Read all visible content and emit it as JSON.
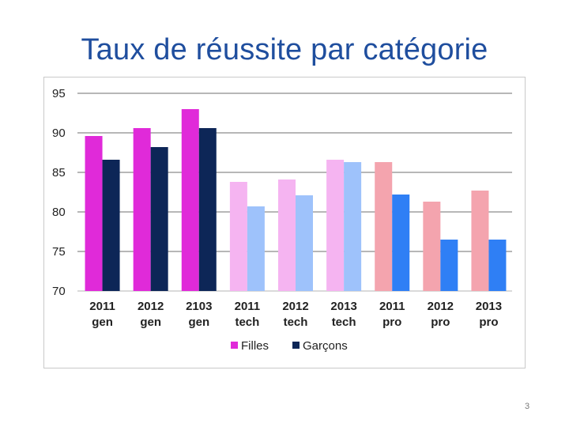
{
  "slide": {
    "title": "Taux de réussite par catégorie",
    "page_number": "3"
  },
  "chart_data": {
    "type": "bar",
    "title": "",
    "xlabel": "",
    "ylabel": "",
    "ylim": [
      70,
      95
    ],
    "yticks": [
      "95",
      "90",
      "85",
      "80",
      "75",
      "70"
    ],
    "ytick_values": [
      95,
      90,
      85,
      80,
      75,
      70
    ],
    "grid": true,
    "legend_position": "bottom",
    "categories": [
      [
        "2011",
        "gen"
      ],
      [
        "2012",
        "gen"
      ],
      [
        "2103",
        "gen"
      ],
      [
        "2011",
        "tech"
      ],
      [
        "2012",
        "tech"
      ],
      [
        "2013",
        "tech"
      ],
      [
        "2011",
        "pro"
      ],
      [
        "2012",
        "pro"
      ],
      [
        "2013",
        "pro"
      ]
    ],
    "series": [
      {
        "name": "Filles",
        "values": [
          89.6,
          90.6,
          93.0,
          83.8,
          84.1,
          86.6,
          86.3,
          81.3,
          82.7
        ],
        "colors": [
          "#e02ad9",
          "#e02ad9",
          "#e02ad9",
          "#f5b4f1",
          "#f5b4f1",
          "#f5b4f1",
          "#f4a4ae",
          "#f4a4ae",
          "#f4a4ae"
        ]
      },
      {
        "name": "Garçons",
        "values": [
          86.6,
          88.2,
          90.6,
          80.7,
          82.1,
          86.3,
          82.2,
          76.5,
          76.5
        ],
        "colors": [
          "#0d2657",
          "#0d2657",
          "#0d2657",
          "#9ec2fb",
          "#9ec2fb",
          "#9ec2fb",
          "#2f7ff5",
          "#2f7ff5",
          "#2f7ff5"
        ]
      }
    ],
    "legend": [
      {
        "label": "Filles",
        "color": "#e02ad9"
      },
      {
        "label": "Garçons",
        "color": "#0d2657"
      }
    ]
  }
}
